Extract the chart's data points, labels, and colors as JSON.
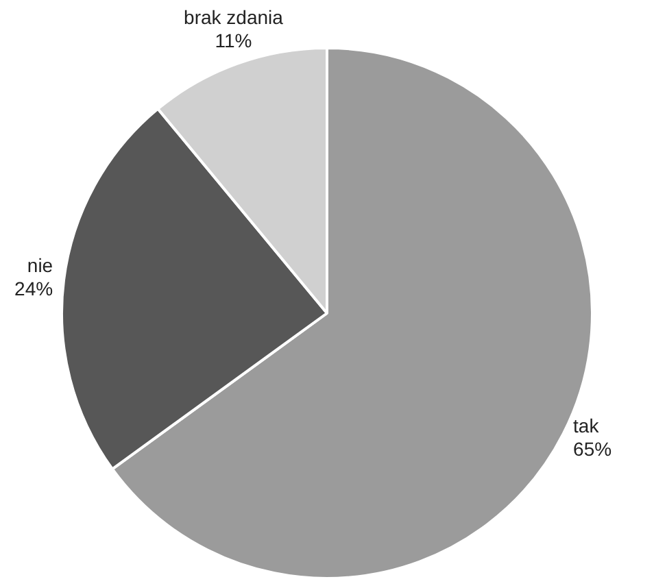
{
  "chart_data": {
    "type": "pie",
    "categories": [
      "tak",
      "nie",
      "brak zdania"
    ],
    "values": [
      65,
      24,
      11
    ],
    "value_labels": [
      "65%",
      "24%",
      "11%"
    ],
    "colors": [
      "#9b9b9b",
      "#575757",
      "#d0d0d0"
    ],
    "legend": false
  }
}
